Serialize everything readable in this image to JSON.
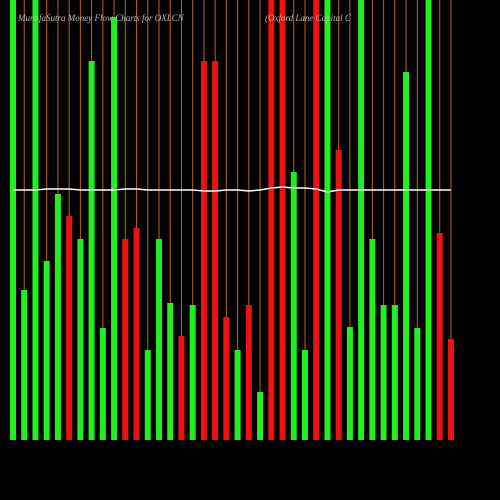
{
  "chart_data": {
    "type": "bar",
    "title": "MunafaSutra  Money Flow  Charts for OXLCN",
    "subtitle": "(Oxford Lane  Capital C",
    "ylim": [
      0,
      440
    ],
    "up_color": "#22ee22",
    "down_color": "#ee1111",
    "line_color": "#ffffff",
    "rule_color": "#b5651d",
    "bars": [
      {
        "dir": "up",
        "value": 440
      },
      {
        "dir": "up",
        "value": 150
      },
      {
        "dir": "up",
        "value": 440
      },
      {
        "dir": "up",
        "value": 179
      },
      {
        "dir": "up",
        "value": 246
      },
      {
        "dir": "down",
        "value": 224
      },
      {
        "dir": "up",
        "value": 201
      },
      {
        "dir": "up",
        "value": 379
      },
      {
        "dir": "up",
        "value": 112
      },
      {
        "dir": "up",
        "value": 423
      },
      {
        "dir": "down",
        "value": 201
      },
      {
        "dir": "down",
        "value": 212
      },
      {
        "dir": "up",
        "value": 90
      },
      {
        "dir": "up",
        "value": 201
      },
      {
        "dir": "up",
        "value": 137
      },
      {
        "dir": "down",
        "value": 104
      },
      {
        "dir": "up",
        "value": 135
      },
      {
        "dir": "down",
        "value": 379
      },
      {
        "dir": "down",
        "value": 379
      },
      {
        "dir": "down",
        "value": 123
      },
      {
        "dir": "up",
        "value": 90
      },
      {
        "dir": "down",
        "value": 135
      },
      {
        "dir": "up",
        "value": 48
      },
      {
        "dir": "down",
        "value": 440
      },
      {
        "dir": "down",
        "value": 440
      },
      {
        "dir": "up",
        "value": 268
      },
      {
        "dir": "up",
        "value": 90
      },
      {
        "dir": "down",
        "value": 440
      },
      {
        "dir": "up",
        "value": 440
      },
      {
        "dir": "down",
        "value": 290
      },
      {
        "dir": "up",
        "value": 113
      },
      {
        "dir": "up",
        "value": 440
      },
      {
        "dir": "up",
        "value": 201
      },
      {
        "dir": "up",
        "value": 135
      },
      {
        "dir": "up",
        "value": 135
      },
      {
        "dir": "up",
        "value": 368
      },
      {
        "dir": "up",
        "value": 112
      },
      {
        "dir": "up",
        "value": 440
      },
      {
        "dir": "down",
        "value": 207
      },
      {
        "dir": "down",
        "value": 101
      }
    ],
    "line": [
      250,
      250,
      250,
      251,
      251,
      251,
      250,
      250,
      250,
      250,
      251,
      251,
      250,
      250,
      250,
      250,
      250,
      249,
      249,
      250,
      250,
      249,
      250,
      252,
      253,
      252,
      252,
      251,
      248,
      250,
      250,
      250,
      250,
      250,
      250,
      250,
      250,
      250,
      250,
      250
    ]
  }
}
